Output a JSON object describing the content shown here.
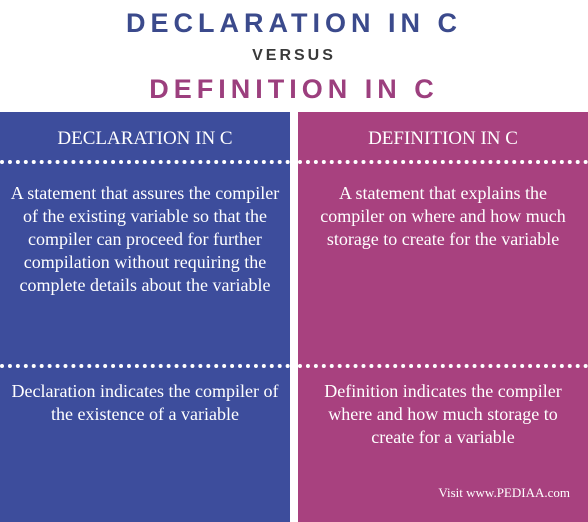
{
  "header": {
    "title_declaration": "DECLARATION IN C",
    "versus": "VERSUS",
    "title_definition": "DEFINITION IN C"
  },
  "columns": [
    {
      "heading": "DECLARATION IN C",
      "color": "#3d4d9c",
      "rows": [
        "A statement that assures the compiler of the existing variable so that the compiler can proceed for further compilation without requiring the complete details about the variable",
        "Declaration indicates the compiler of the existence of a variable"
      ]
    },
    {
      "heading": "DEFINITION IN C",
      "color": "#a8417f",
      "rows": [
        "A statement that explains the compiler on where and how much storage to create for the variable",
        "Definition indicates the compiler where and how much storage to create for a variable"
      ]
    }
  ],
  "footer": {
    "credit": "Visit www.PEDIAA.com"
  }
}
